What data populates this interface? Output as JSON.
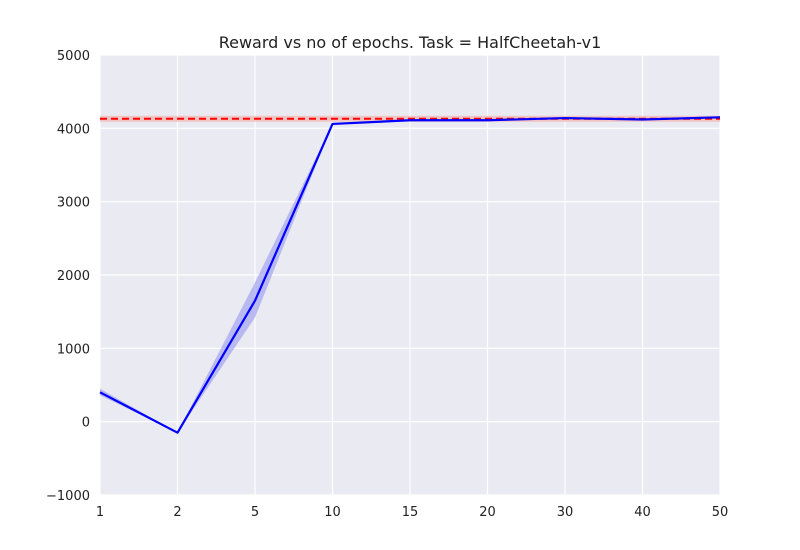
{
  "chart_data": {
    "type": "line",
    "title": "Reward vs no of epochs. Task = HalfCheetah-v1",
    "xlabel": "",
    "ylabel": "",
    "categories": [
      "1",
      "2",
      "5",
      "10",
      "15",
      "20",
      "30",
      "40",
      "50"
    ],
    "ylim": [
      -1000,
      5000
    ],
    "yticks": [
      -1000,
      0,
      1000,
      2000,
      3000,
      4000,
      5000
    ],
    "ytick_labels": [
      "−1000",
      "0",
      "1000",
      "2000",
      "3000",
      "4000",
      "5000"
    ],
    "grid": true,
    "series": [
      {
        "values": [
          400,
          -150,
          1650,
          4060,
          4110,
          4110,
          4140,
          4120,
          4150
        ],
        "lower": [
          360,
          -150,
          1420,
          4060,
          4100,
          4100,
          4120,
          4110,
          4140
        ],
        "upper": [
          450,
          -150,
          1900,
          4060,
          4120,
          4120,
          4150,
          4130,
          4160
        ],
        "color": "#0000ff",
        "band_color": "#a8a8f0"
      }
    ],
    "reference_line": {
      "value": 4130,
      "color": "#ff0000",
      "style": "dashed"
    },
    "background_color": "#eaeaf2",
    "grid_color": "#ffffff"
  }
}
